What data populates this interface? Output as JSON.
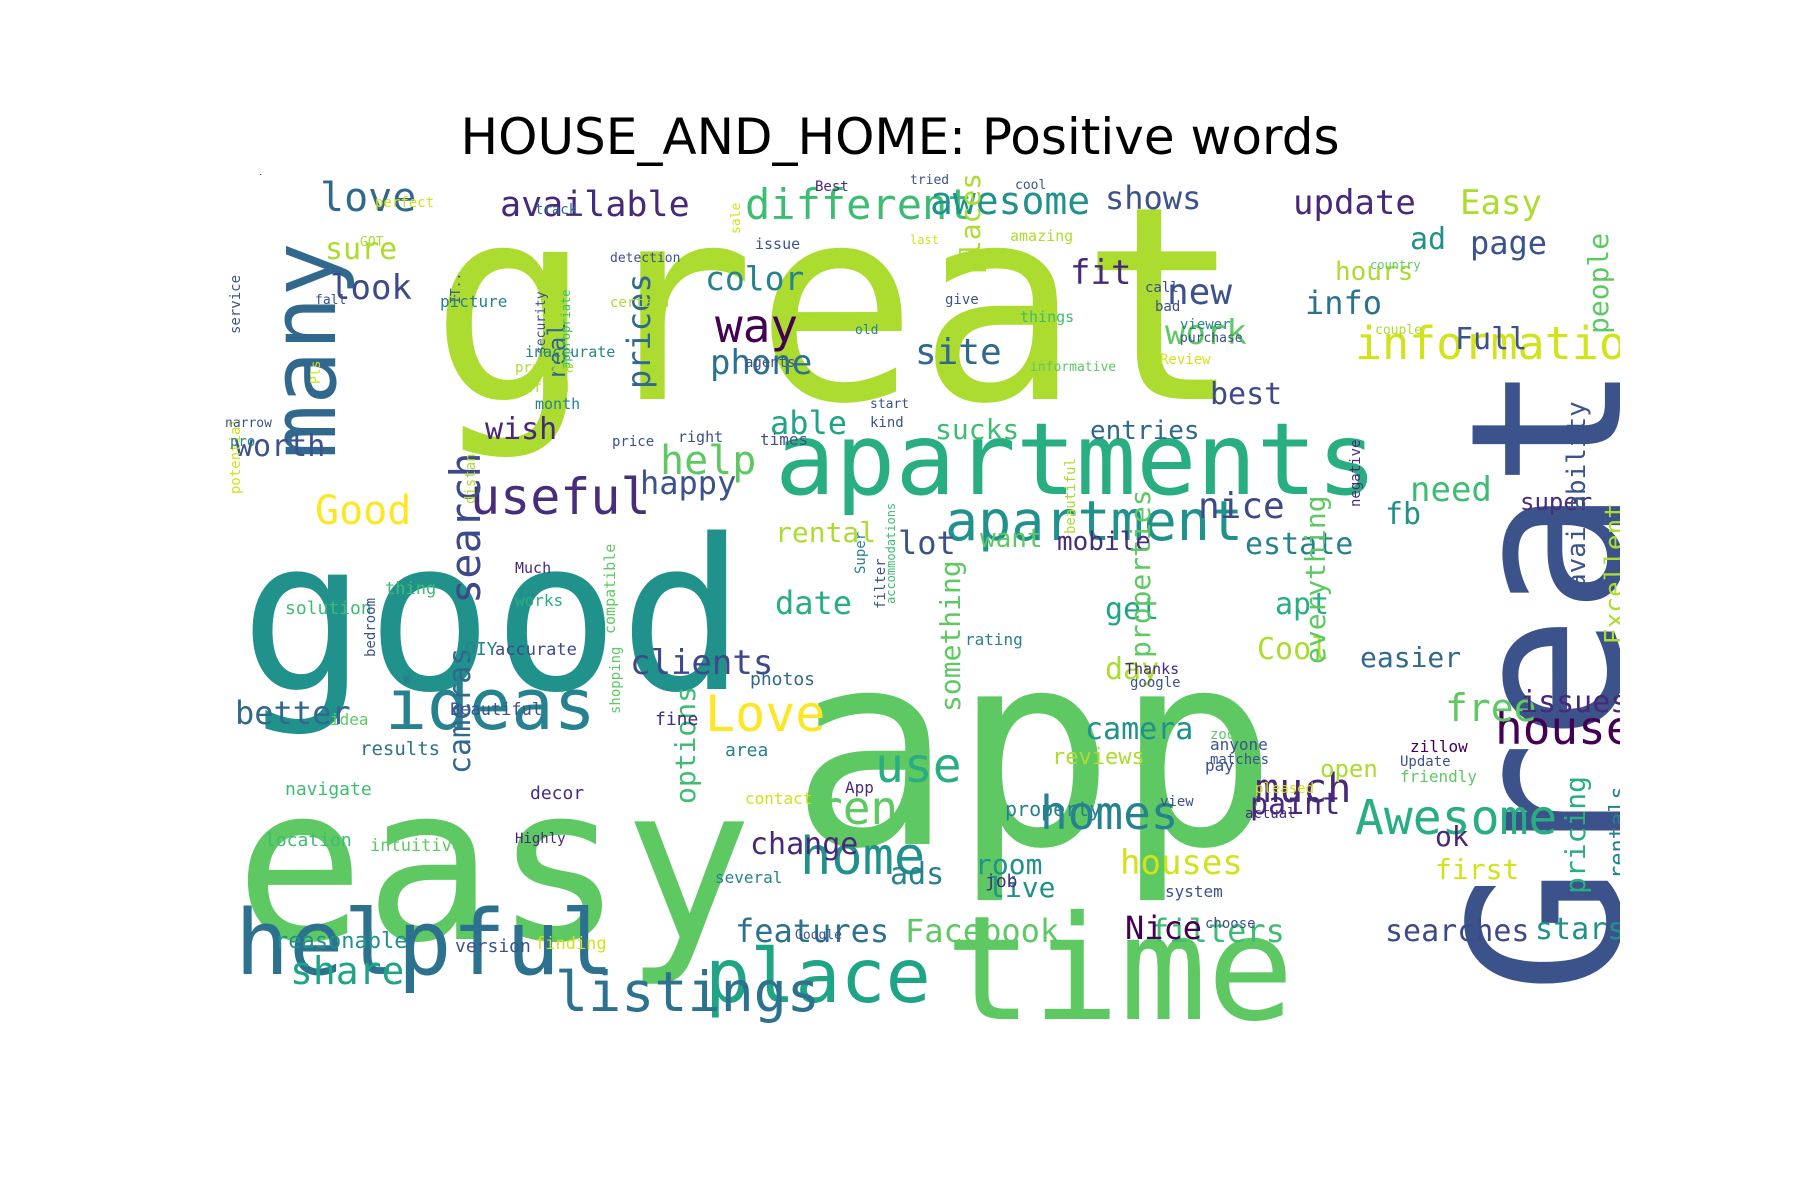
{
  "title": "HOUSE_AND_HOME: Positive words",
  "words": [
    {
      "text": "great",
      "color": "#addc30"
    },
    {
      "text": "app",
      "color": "#5ec962"
    },
    {
      "text": "Great",
      "color": "#3b528b"
    },
    {
      "text": "good",
      "color": "#21918c"
    },
    {
      "text": "easy",
      "color": "#5ec962"
    },
    {
      "text": "time",
      "color": "#5ec962"
    },
    {
      "text": "apartments",
      "color": "#28ae80"
    },
    {
      "text": "many",
      "color": "#31688e"
    },
    {
      "text": "helpful",
      "color": "#2c728e"
    },
    {
      "text": "ideas",
      "color": "#26828e"
    },
    {
      "text": "place",
      "color": "#20a486"
    },
    {
      "text": "apartment",
      "color": "#21918c"
    },
    {
      "text": "listings",
      "color": "#2c728e"
    },
    {
      "text": "useful",
      "color": "#472d7b"
    },
    {
      "text": "Love",
      "color": "#fde725"
    },
    {
      "text": "information",
      "color": "#d2e21b"
    },
    {
      "text": "Awesome",
      "color": "#28ae80"
    },
    {
      "text": "homes",
      "color": "#26828e"
    },
    {
      "text": "home",
      "color": "#21918c"
    },
    {
      "text": "search",
      "color": "#3e4989"
    },
    {
      "text": "love",
      "color": "#31688e"
    },
    {
      "text": "different",
      "color": "#3fbc73"
    },
    {
      "text": "available",
      "color": "#482878"
    },
    {
      "text": "awesome",
      "color": "#21918c"
    },
    {
      "text": "way",
      "color": "#440154"
    },
    {
      "text": "Good",
      "color": "#fde725"
    },
    {
      "text": "house",
      "color": "#440154"
    },
    {
      "text": "rent",
      "color": "#5ec962"
    },
    {
      "text": "use",
      "color": "#28ae80"
    },
    {
      "text": "nice",
      "color": "#3e4989"
    },
    {
      "text": "help",
      "color": "#5ec962"
    },
    {
      "text": "much",
      "color": "#482878"
    },
    {
      "text": "share",
      "color": "#20a486"
    },
    {
      "text": "update",
      "color": "#482878"
    },
    {
      "text": "shows",
      "color": "#3b528b"
    },
    {
      "text": "Easy",
      "color": "#addc30"
    },
    {
      "text": "site",
      "color": "#31688e"
    },
    {
      "text": "phone",
      "color": "#2c728e"
    },
    {
      "text": "free",
      "color": "#5ec962"
    },
    {
      "text": "clients",
      "color": "#3e4989"
    },
    {
      "text": "houses",
      "color": "#d2e21b"
    },
    {
      "text": "need",
      "color": "#3fbc73"
    },
    {
      "text": "color",
      "color": "#26828e"
    },
    {
      "text": "new",
      "color": "#3b528b"
    },
    {
      "text": "page",
      "color": "#3b528b"
    },
    {
      "text": "info",
      "color": "#2c728e"
    },
    {
      "text": "work",
      "color": "#5ec962"
    },
    {
      "text": "look",
      "color": "#3e4989"
    },
    {
      "text": "better",
      "color": "#31688e"
    },
    {
      "text": "happy",
      "color": "#3b528b"
    },
    {
      "text": "sure",
      "color": "#addc30"
    },
    {
      "text": "fit",
      "color": "#482878"
    },
    {
      "text": "worth",
      "color": "#3b528b"
    },
    {
      "text": "date",
      "color": "#28ae80"
    },
    {
      "text": "lot",
      "color": "#3b528b"
    },
    {
      "text": "best",
      "color": "#3e4989"
    },
    {
      "text": "estate",
      "color": "#26828e"
    },
    {
      "text": "Facebook",
      "color": "#5ec962"
    },
    {
      "text": "filters",
      "color": "#3fbc73"
    },
    {
      "text": "searches",
      "color": "#3e4989"
    },
    {
      "text": "stars",
      "color": "#21918c"
    },
    {
      "text": "features",
      "color": "#2c728e"
    },
    {
      "text": "Nice",
      "color": "#440154"
    },
    {
      "text": "change",
      "color": "#482878"
    },
    {
      "text": "ads",
      "color": "#26828e"
    },
    {
      "text": "paint",
      "color": "#482878"
    },
    {
      "text": "issues",
      "color": "#482878"
    },
    {
      "text": "camera",
      "color": "#21918c"
    },
    {
      "text": "Cool",
      "color": "#addc30"
    },
    {
      "text": "apt",
      "color": "#28ae80"
    },
    {
      "text": "day",
      "color": "#addc30"
    },
    {
      "text": "get",
      "color": "#20a486"
    },
    {
      "text": "easier",
      "color": "#31688e"
    },
    {
      "text": "room",
      "color": "#21918c"
    },
    {
      "text": "live",
      "color": "#21918c"
    },
    {
      "text": "ok",
      "color": "#482878"
    },
    {
      "text": "first",
      "color": "#d2e21b"
    },
    {
      "text": "hours",
      "color": "#addc30"
    },
    {
      "text": "ad",
      "color": "#21918c"
    },
    {
      "text": "Full",
      "color": "#3b528b"
    },
    {
      "text": "able",
      "color": "#20a486"
    },
    {
      "text": "sucks",
      "color": "#3fbc73"
    },
    {
      "text": "entries",
      "color": "#31688e"
    },
    {
      "text": "wish",
      "color": "#482878"
    },
    {
      "text": "fb",
      "color": "#21918c"
    },
    {
      "text": "rental",
      "color": "#addc30"
    },
    {
      "text": "want",
      "color": "#5ec962"
    },
    {
      "text": "mobile",
      "color": "#472d7b"
    },
    {
      "text": "super",
      "color": "#472d7b"
    },
    {
      "text": "reasonable",
      "color": "#21918c"
    },
    {
      "text": "reviews",
      "color": "#addc30"
    },
    {
      "text": "open",
      "color": "#addc30"
    },
    {
      "text": "cameras",
      "color": "#31688e"
    },
    {
      "text": "real",
      "color": "#31688e"
    },
    {
      "text": "prices",
      "color": "#31688e"
    },
    {
      "text": "places",
      "color": "#addc30"
    },
    {
      "text": "people",
      "color": "#5ec962"
    },
    {
      "text": "properties",
      "color": "#5ec962"
    },
    {
      "text": "something",
      "color": "#5ec962"
    },
    {
      "text": "options",
      "color": "#3fbc73"
    },
    {
      "text": "everything",
      "color": "#5ec962"
    },
    {
      "text": "availability",
      "color": "#3b528b"
    },
    {
      "text": "Excellent",
      "color": "#addc30"
    },
    {
      "text": "pricing",
      "color": "#28ae80"
    },
    {
      "text": "rentals",
      "color": "#26828e"
    },
    {
      "text": "property",
      "color": "#26828e"
    },
    {
      "text": "version",
      "color": "#3b528b"
    },
    {
      "text": "finding",
      "color": "#d2e21b"
    },
    {
      "text": "decor",
      "color": "#472d7b"
    },
    {
      "text": "navigate",
      "color": "#3fbc73"
    },
    {
      "text": "location",
      "color": "#3fbc73"
    },
    {
      "text": "intuitive",
      "color": "#5ec962"
    },
    {
      "text": "results",
      "color": "#2c728e"
    },
    {
      "text": "idea",
      "color": "#5ec962"
    },
    {
      "text": "Beautiful",
      "color": "#3b528b"
    },
    {
      "text": "fine",
      "color": "#472d7b"
    },
    {
      "text": "photos",
      "color": "#31688e"
    },
    {
      "text": "accurate",
      "color": "#3e4989"
    },
    {
      "text": "DIY",
      "color": "#26828e"
    },
    {
      "text": "solution",
      "color": "#3fbc73"
    },
    {
      "text": "thing",
      "color": "#3fbc73"
    },
    {
      "text": "Much",
      "color": "#482878"
    },
    {
      "text": "works",
      "color": "#28ae80"
    },
    {
      "text": "compatible",
      "color": "#5ec962"
    },
    {
      "text": "area",
      "color": "#26828e"
    },
    {
      "text": "contact",
      "color": "#d2e21b"
    },
    {
      "text": "App",
      "color": "#472d7b"
    },
    {
      "text": "several",
      "color": "#26828e"
    },
    {
      "text": "job",
      "color": "#472d7b"
    },
    {
      "text": "Google",
      "color": "#3b528b"
    },
    {
      "text": "Highly",
      "color": "#482878"
    },
    {
      "text": "system",
      "color": "#3b528b"
    },
    {
      "text": "choose",
      "color": "#3b528b"
    },
    {
      "text": "actual",
      "color": "#472d7b"
    },
    {
      "text": "view",
      "color": "#3b528b"
    },
    {
      "text": "pleased",
      "color": "#d2e21b"
    },
    {
      "text": "pay",
      "color": "#3b528b"
    },
    {
      "text": "matches",
      "color": "#3b528b"
    },
    {
      "text": "anyone",
      "color": "#3b528b"
    },
    {
      "text": "zoom",
      "color": "#5ec962"
    },
    {
      "text": "zillow",
      "color": "#440154"
    },
    {
      "text": "Update",
      "color": "#3b528b"
    },
    {
      "text": "friendly",
      "color": "#5ec962"
    },
    {
      "text": "Thanks",
      "color": "#482878"
    },
    {
      "text": "google",
      "color": "#3b528b"
    },
    {
      "text": "rating",
      "color": "#26828e"
    },
    {
      "text": "filter",
      "color": "#3b528b"
    },
    {
      "text": "Super",
      "color": "#26828e"
    },
    {
      "text": "accommodations",
      "color": "#3fbc73"
    },
    {
      "text": "beautiful",
      "color": "#addc30"
    },
    {
      "text": "negative",
      "color": "#472d7b"
    },
    {
      "text": "phones",
      "color": "#3b528b"
    },
    {
      "text": "distance",
      "color": "#addc30"
    },
    {
      "text": "bedroom",
      "color": "#3b528b"
    },
    {
      "text": "shopping",
      "color": "#5ec962"
    },
    {
      "text": "setup",
      "color": "#2c728e"
    },
    {
      "text": "perfect",
      "color": "#d2e21b"
    },
    {
      "text": "service",
      "color": "#3b528b"
    },
    {
      "text": "potential",
      "color": "#d2e21b"
    },
    {
      "text": "GOT",
      "color": "#addc30"
    },
    {
      "text": "fall",
      "color": "#3b528b"
    },
    {
      "text": "Pls",
      "color": "#d2e21b"
    },
    {
      "text": "narrow",
      "color": "#3b528b"
    },
    {
      "text": "pro",
      "color": "#26828e"
    },
    {
      "text": "track",
      "color": "#31688e"
    },
    {
      "text": "IT..",
      "color": "#3b528b"
    },
    {
      "text": "security",
      "color": "#3b528b"
    },
    {
      "text": "appropriate",
      "color": "#3fbc73"
    },
    {
      "text": "sale",
      "color": "#d2e21b"
    },
    {
      "text": "issue",
      "color": "#3b528b"
    },
    {
      "text": "detection",
      "color": "#3b528b"
    },
    {
      "text": "certain",
      "color": "#addc30"
    },
    {
      "text": "picture",
      "color": "#26828e"
    },
    {
      "text": "inaccurate",
      "color": "#26828e"
    },
    {
      "text": "profile",
      "color": "#addc30"
    },
    {
      "text": "Alfred",
      "color": "#addc30"
    },
    {
      "text": "month",
      "color": "#26828e"
    },
    {
      "text": "price",
      "color": "#3b528b"
    },
    {
      "text": "right",
      "color": "#3b528b"
    },
    {
      "text": "times",
      "color": "#3b528b"
    },
    {
      "text": "agents",
      "color": "#3b528b"
    },
    {
      "text": "start",
      "color": "#3b528b"
    },
    {
      "text": "kind",
      "color": "#3b528b"
    },
    {
      "text": "informative",
      "color": "#5ec962"
    },
    {
      "text": "Review",
      "color": "#d2e21b"
    },
    {
      "text": "give",
      "color": "#3b528b"
    },
    {
      "text": "old",
      "color": "#26828e"
    },
    {
      "text": "bad",
      "color": "#3b528b"
    },
    {
      "text": "call",
      "color": "#3b528b"
    },
    {
      "text": "things",
      "color": "#3fbc73"
    },
    {
      "text": "amazing",
      "color": "#addc30"
    },
    {
      "text": "last",
      "color": "#d2e21b"
    },
    {
      "text": "tried",
      "color": "#3b528b"
    },
    {
      "text": "Best",
      "color": "#482878"
    },
    {
      "text": "cool",
      "color": "#3b528b"
    },
    {
      "text": "try",
      "color": "#5ec962"
    },
    {
      "text": "country",
      "color": "#5ec962"
    },
    {
      "text": "couple",
      "color": "#addc30"
    },
    {
      "text": "viewer",
      "color": "#26828e"
    },
    {
      "text": "purchase",
      "color": "#3b528b"
    }
  ]
}
